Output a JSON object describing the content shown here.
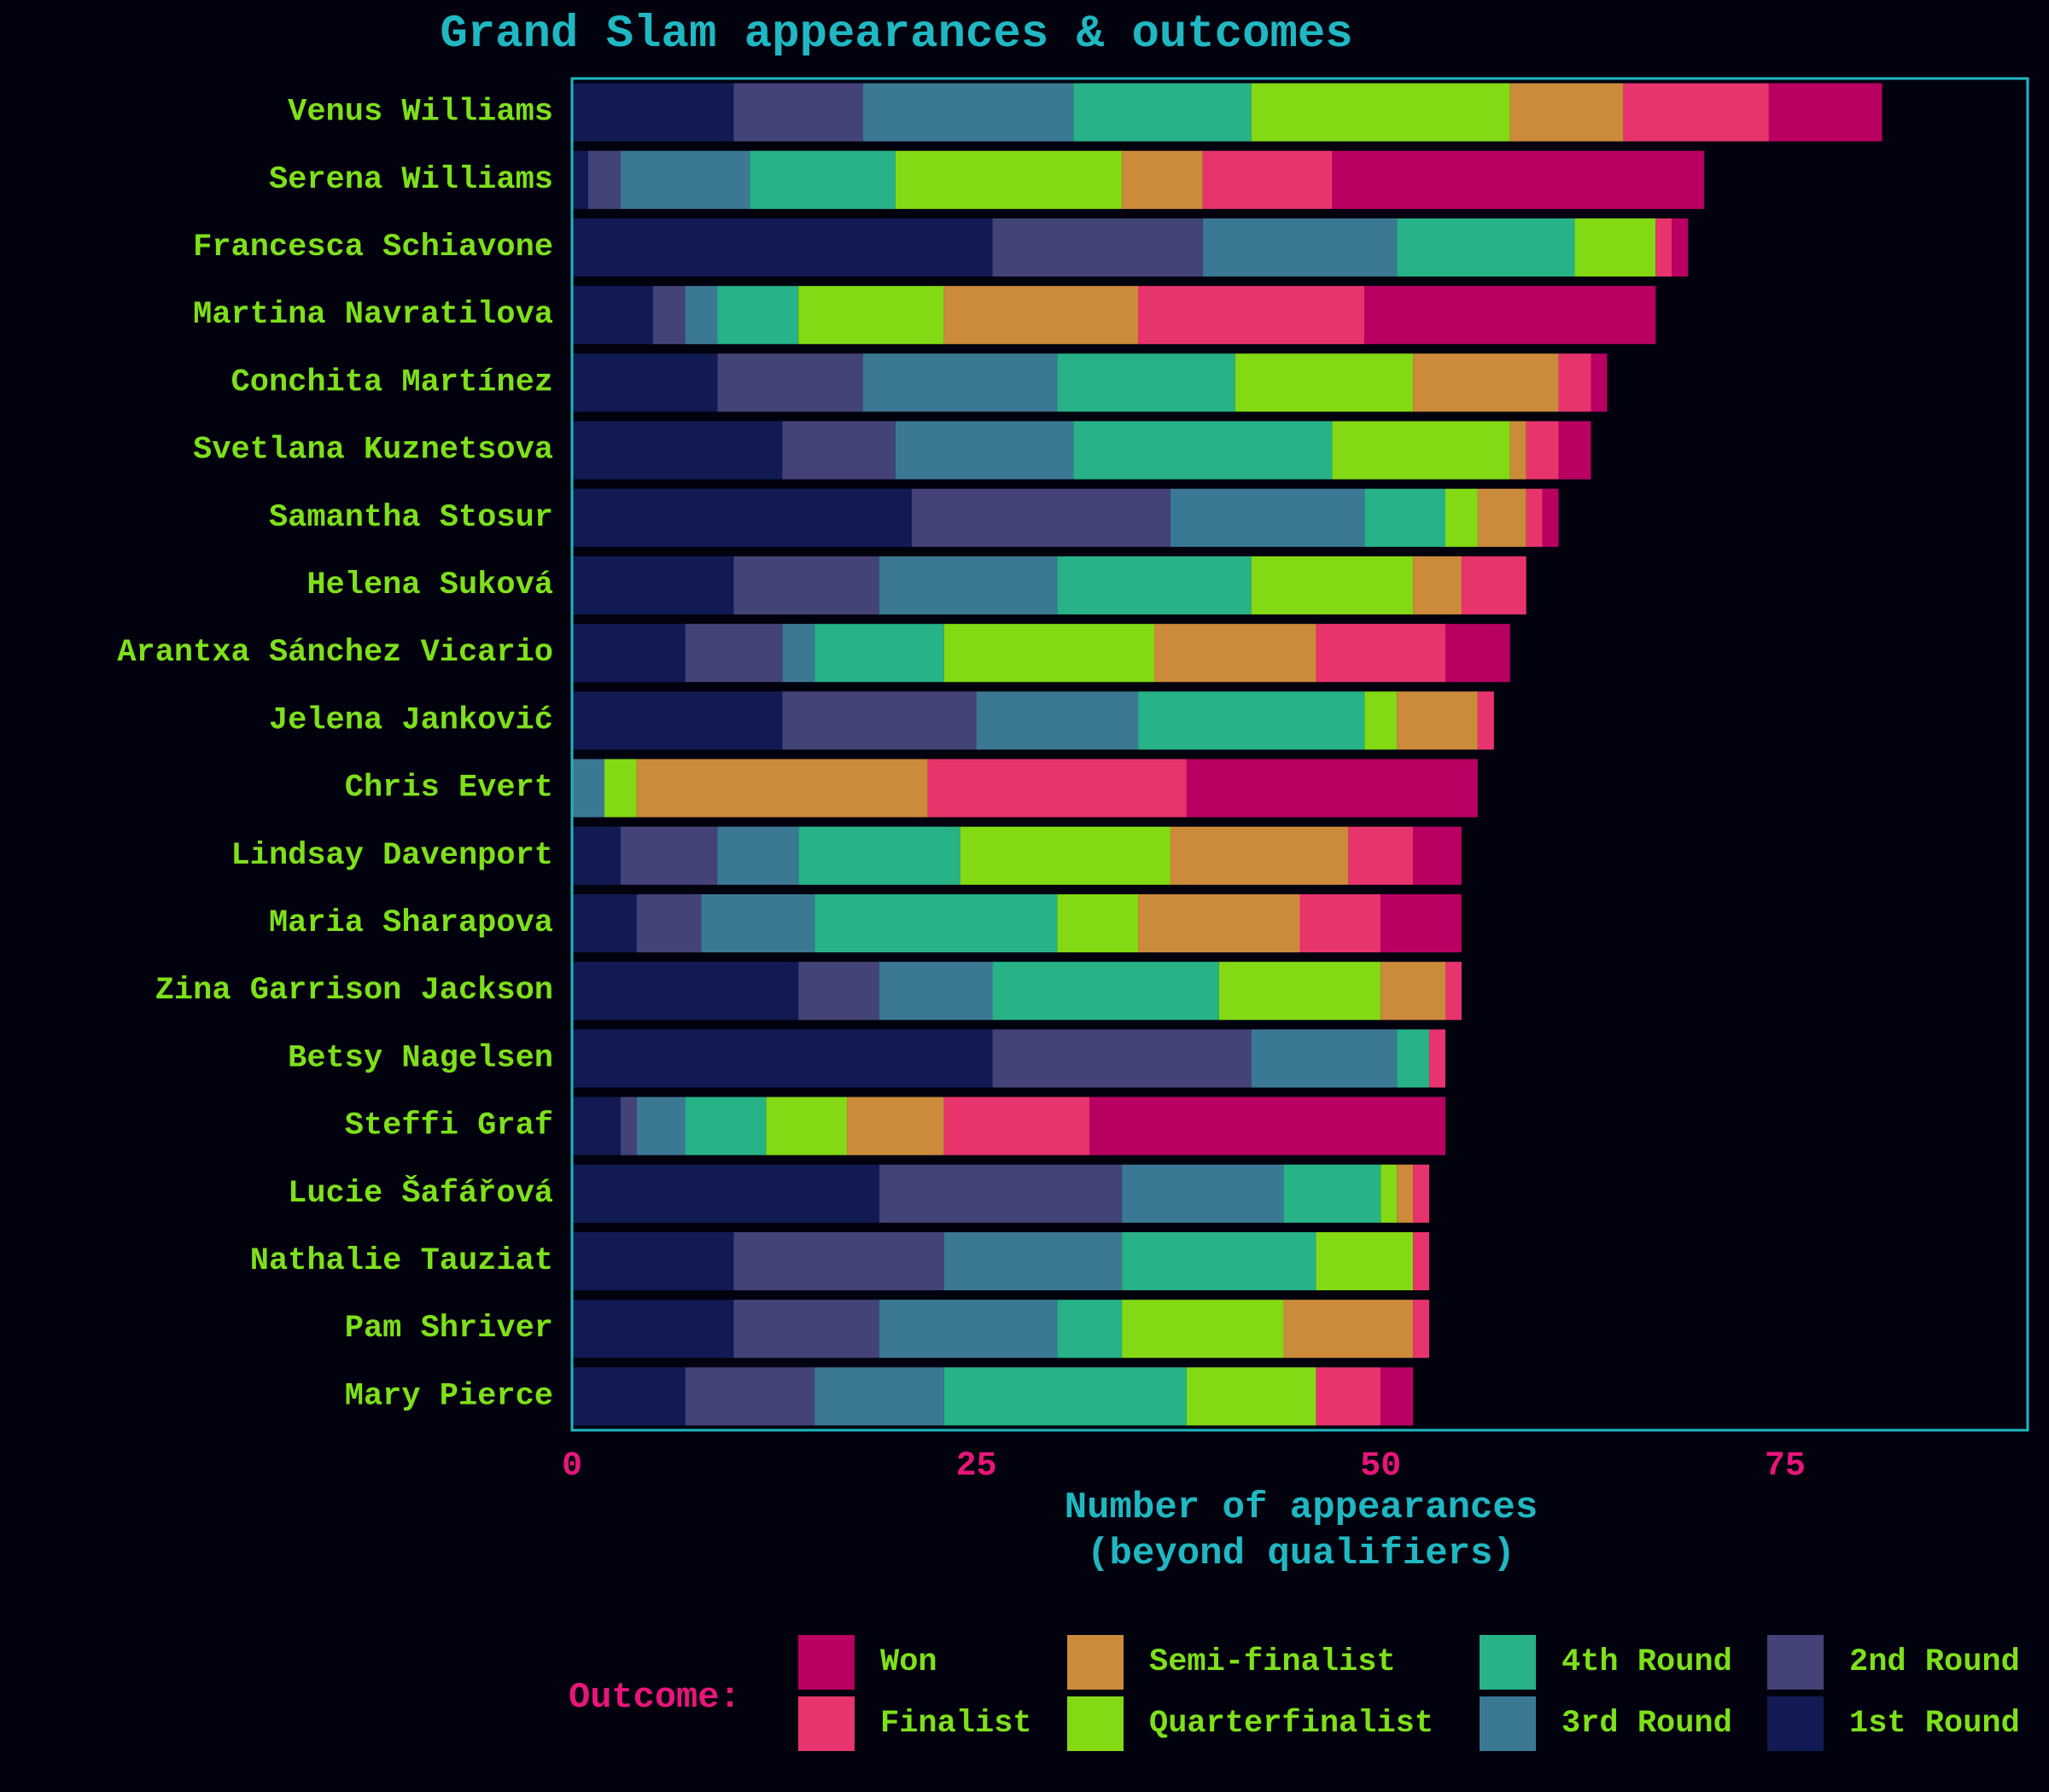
{
  "chart_data": {
    "type": "bar",
    "orientation": "horizontal",
    "stacked": true,
    "title": "Grand Slam appearances & outcomes",
    "xlabel": "Number of appearances",
    "xlabel_line2": "(beyond qualifiers)",
    "ylabel": "",
    "xlim": [
      0,
      90
    ],
    "xticks": [
      0,
      25,
      50,
      75
    ],
    "grid": false,
    "legend": {
      "title": "Outcome:",
      "placement": "bottom"
    },
    "colors": {
      "title": "#1fb8c2",
      "category_labels": "#7ee01a",
      "tick_labels": "#e8157a",
      "frame": "#1fb8c2",
      "background": "#02020f"
    },
    "categories": [
      "Venus Williams",
      "Serena Williams",
      "Francesca Schiavone",
      "Martina Navratilova",
      "Conchita Martínez",
      "Svetlana Kuznetsova",
      "Samantha Stosur",
      "Helena Suková",
      "Arantxa Sánchez Vicario",
      "Jelena Janković",
      "Chris Evert",
      "Lindsay Davenport",
      "Maria Sharapova",
      "Zina Garrison Jackson",
      "Betsy Nagelsen",
      "Steffi Graf",
      "Lucie Šafářová",
      "Nathalie Tauziat",
      "Pam Shriver",
      "Mary Pierce"
    ],
    "series": [
      {
        "name": "1st Round",
        "color": "#111a52",
        "values": [
          10,
          1,
          26,
          5,
          9,
          13,
          21,
          10,
          7,
          13,
          0,
          3,
          4,
          14,
          26,
          3,
          19,
          10,
          10,
          7
        ]
      },
      {
        "name": "2nd Round",
        "color": "#434378",
        "values": [
          8,
          2,
          13,
          2,
          9,
          7,
          16,
          9,
          6,
          12,
          0,
          6,
          4,
          5,
          16,
          1,
          15,
          13,
          9,
          8
        ]
      },
      {
        "name": "3rd Round",
        "color": "#3b7893",
        "values": [
          13,
          8,
          12,
          2,
          12,
          11,
          12,
          11,
          2,
          10,
          2,
          5,
          7,
          7,
          9,
          3,
          10,
          11,
          11,
          8
        ]
      },
      {
        "name": "4th Round",
        "color": "#27b287",
        "values": [
          11,
          9,
          11,
          5,
          11,
          16,
          5,
          12,
          8,
          14,
          0,
          10,
          15,
          14,
          2,
          5,
          6,
          12,
          4,
          15
        ]
      },
      {
        "name": "Quarterfinalist",
        "color": "#83d914",
        "values": [
          16,
          14,
          5,
          9,
          11,
          11,
          2,
          10,
          13,
          2,
          2,
          13,
          5,
          10,
          0,
          5,
          1,
          6,
          10,
          8
        ]
      },
      {
        "name": "Semi-finalist",
        "color": "#cc8a3b",
        "values": [
          7,
          5,
          0,
          12,
          9,
          1,
          3,
          3,
          10,
          5,
          18,
          11,
          10,
          4,
          0,
          6,
          1,
          0,
          8,
          0
        ]
      },
      {
        "name": "Finalist",
        "color": "#e7346c",
        "values": [
          9,
          8,
          1,
          14,
          2,
          2,
          1,
          4,
          8,
          1,
          16,
          4,
          5,
          1,
          1,
          9,
          1,
          1,
          1,
          4
        ]
      },
      {
        "name": "Won",
        "color": "#b90062",
        "values": [
          7,
          23,
          1,
          18,
          1,
          2,
          1,
          0,
          4,
          0,
          18,
          3,
          5,
          0,
          0,
          22,
          0,
          0,
          0,
          2
        ]
      }
    ]
  }
}
